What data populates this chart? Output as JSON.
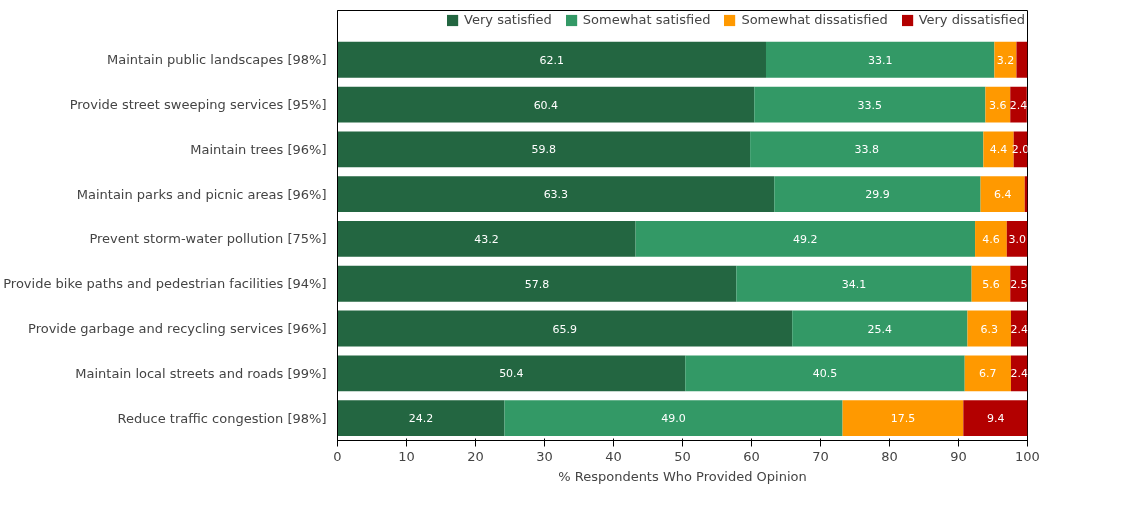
{
  "chart_data": {
    "type": "bar",
    "orientation": "horizontal",
    "stacked": true,
    "xlabel": "% Respondents Who Provided Opinion",
    "categories": [
      "Maintain public landscapes [98%]",
      "Provide street sweeping services [95%]",
      "Maintain trees [96%]",
      "Maintain parks and picnic areas [96%]",
      "Prevent storm-water pollution [75%]",
      "Provide bike paths and pedestrian facilities [94%]",
      "Provide garbage and recycling services [96%]",
      "Maintain local streets and roads [99%]",
      "Reduce traffic congestion [98%]"
    ],
    "series": [
      {
        "name": "Very satisfied",
        "color": "#236641",
        "values": [
          62.1,
          60.4,
          59.8,
          63.3,
          43.2,
          57.8,
          65.9,
          50.4,
          24.2
        ],
        "value_labels": [
          "62.1",
          "60.4",
          "59.8",
          "63.3",
          "43.2",
          "57.8",
          "65.9",
          "50.4",
          "24.2"
        ]
      },
      {
        "name": "Somewhat satisfied",
        "color": "#339966",
        "values": [
          33.1,
          33.5,
          33.8,
          29.9,
          49.2,
          34.1,
          25.4,
          40.5,
          49.0
        ],
        "value_labels": [
          "33.1",
          "33.5",
          "33.8",
          "29.9",
          "49.2",
          "34.1",
          "25.4",
          "40.5",
          "49.0"
        ]
      },
      {
        "name": "Somewhat dissatisfied",
        "color": "#ff9900",
        "values": [
          3.2,
          3.6,
          4.4,
          6.4,
          4.6,
          5.6,
          6.3,
          6.7,
          17.5
        ],
        "value_labels": [
          "3.2",
          "3.6",
          "4.4",
          "6.4",
          "4.6",
          "5.6",
          "6.3",
          "6.7",
          "17.5"
        ]
      },
      {
        "name": "Very dissatisfied",
        "color": "#b30000",
        "values": [
          1.6,
          2.4,
          2.0,
          0.4,
          3.0,
          2.5,
          2.4,
          2.4,
          9.4
        ],
        "value_labels": [
          null,
          "2.4",
          "2.0",
          null,
          "3.0",
          "2.5",
          "2.4",
          "2.4",
          "9.4"
        ]
      }
    ],
    "xlim": [
      0,
      100
    ],
    "xticks": [
      0,
      10,
      20,
      30,
      40,
      50,
      60,
      70,
      80,
      90,
      100
    ],
    "grid": false,
    "legend": "top"
  }
}
